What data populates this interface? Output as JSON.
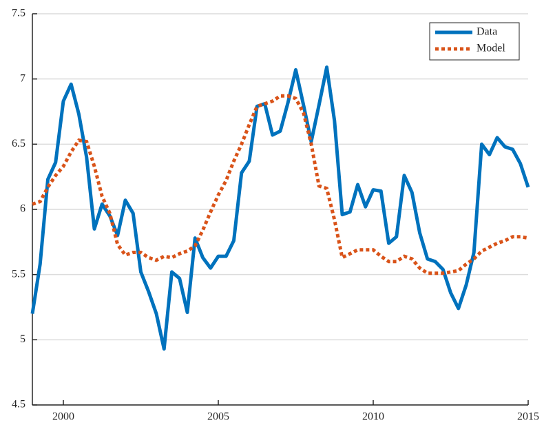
{
  "chart_data": {
    "type": "line",
    "x": [
      1999,
      1999.25,
      1999.5,
      1999.75,
      2000,
      2000.25,
      2000.5,
      2000.75,
      2001,
      2001.25,
      2001.5,
      2001.75,
      2002,
      2002.25,
      2002.5,
      2002.75,
      2003,
      2003.25,
      2003.5,
      2003.75,
      2004,
      2004.25,
      2004.5,
      2004.75,
      2005,
      2005.25,
      2005.5,
      2005.75,
      2006,
      2006.25,
      2006.5,
      2006.75,
      2007,
      2007.25,
      2007.5,
      2007.75,
      2008,
      2008.25,
      2008.5,
      2008.75,
      2009,
      2009.25,
      2009.5,
      2009.75,
      2010,
      2010.25,
      2010.5,
      2010.75,
      2011,
      2011.25,
      2011.5,
      2011.75,
      2012,
      2012.25,
      2012.5,
      2012.75,
      2013,
      2013.25,
      2013.5,
      2013.75,
      2014,
      2014.25,
      2014.5,
      2014.75,
      2015
    ],
    "series": [
      {
        "name": "Data",
        "color": "#0072bd",
        "style": "solid",
        "values": [
          5.2,
          5.58,
          6.23,
          6.36,
          6.83,
          6.96,
          6.73,
          6.4,
          5.85,
          6.04,
          5.95,
          5.8,
          6.07,
          5.97,
          5.52,
          5.37,
          5.2,
          4.93,
          5.52,
          5.47,
          5.21,
          5.78,
          5.63,
          5.55,
          5.64,
          5.64,
          5.76,
          6.28,
          6.37,
          6.79,
          6.81,
          6.57,
          6.6,
          6.82,
          7.07,
          6.8,
          6.52,
          6.8,
          7.09,
          6.68,
          5.96,
          5.98,
          6.19,
          6.02,
          6.15,
          6.14,
          5.74,
          5.79,
          6.26,
          6.13,
          5.82,
          5.62,
          5.6,
          5.54,
          5.36,
          5.24,
          5.42,
          5.67,
          6.5,
          6.42,
          6.55,
          6.48,
          6.46,
          6.35,
          6.17
        ]
      },
      {
        "name": "Model",
        "color": "#d95319",
        "style": "dotted",
        "values": [
          6.04,
          6.06,
          6.17,
          6.26,
          6.33,
          6.44,
          6.53,
          6.52,
          6.33,
          6.1,
          5.97,
          5.73,
          5.65,
          5.67,
          5.67,
          5.63,
          5.61,
          5.64,
          5.63,
          5.66,
          5.68,
          5.72,
          5.84,
          5.98,
          6.11,
          6.22,
          6.37,
          6.5,
          6.65,
          6.79,
          6.81,
          6.83,
          6.87,
          6.87,
          6.85,
          6.74,
          6.5,
          6.18,
          6.16,
          5.92,
          5.63,
          5.66,
          5.69,
          5.69,
          5.69,
          5.64,
          5.6,
          5.6,
          5.64,
          5.62,
          5.55,
          5.51,
          5.51,
          5.51,
          5.52,
          5.53,
          5.58,
          5.62,
          5.68,
          5.71,
          5.74,
          5.76,
          5.79,
          5.79,
          5.78
        ]
      }
    ],
    "xlim": [
      1999,
      2015
    ],
    "xticks": [
      2000,
      2005,
      2010,
      2015
    ],
    "ylim": [
      4.5,
      7.5
    ],
    "yticks": [
      4.5,
      5,
      5.5,
      6,
      6.5,
      7,
      7.5
    ],
    "grid": true,
    "legend": "top-right"
  }
}
